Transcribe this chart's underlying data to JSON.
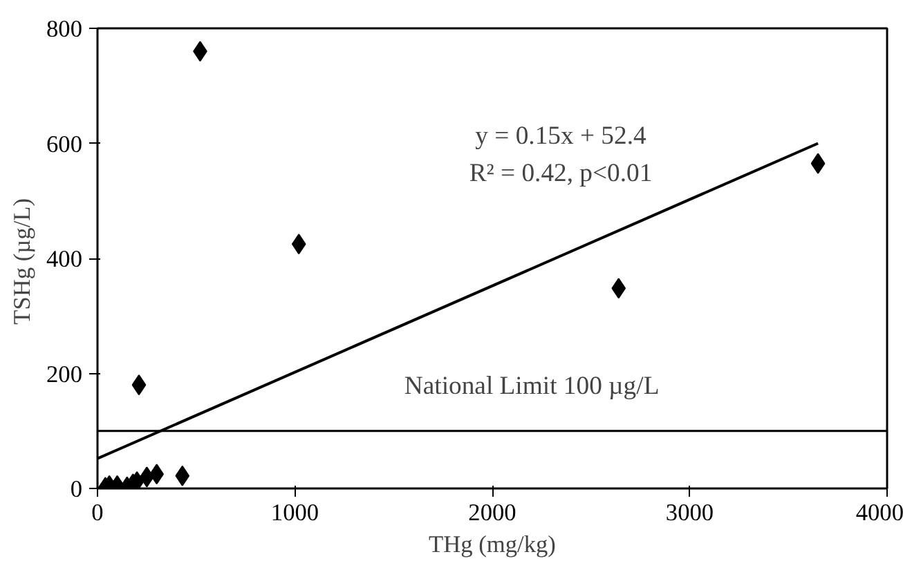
{
  "chart_data": {
    "type": "scatter",
    "xlabel": "THg (mg/kg)",
    "ylabel": "TSHg  (µg/L)",
    "xlim": [
      0,
      4000
    ],
    "ylim": [
      0,
      800
    ],
    "xticks": [
      0,
      1000,
      2000,
      3000,
      4000
    ],
    "yticks": [
      0,
      200,
      400,
      600,
      800
    ],
    "grid": false,
    "marker": "diamond",
    "series": [
      {
        "color": "#000000",
        "x": [
          520,
          1020,
          2640,
          3650,
          210,
          430,
          300,
          250,
          200,
          180,
          150,
          100,
          60,
          40
        ],
        "values": [
          760,
          425,
          348,
          565,
          180,
          22,
          25,
          20,
          12,
          8,
          3,
          5,
          5,
          2
        ]
      },
      {
        "type": "line",
        "color": "#000000",
        "marker": "none",
        "line_style": "solid",
        "x": [
          0,
          3650
        ],
        "values": [
          52,
          600
        ]
      }
    ],
    "ref_lines": [
      {
        "axis": "y",
        "value": 100,
        "label": "National Limit 100 µg/L",
        "color": "#000000"
      }
    ],
    "annotations": [
      "y = 0.15x + 52.4",
      "R² = 0.42, p<0.01"
    ]
  }
}
